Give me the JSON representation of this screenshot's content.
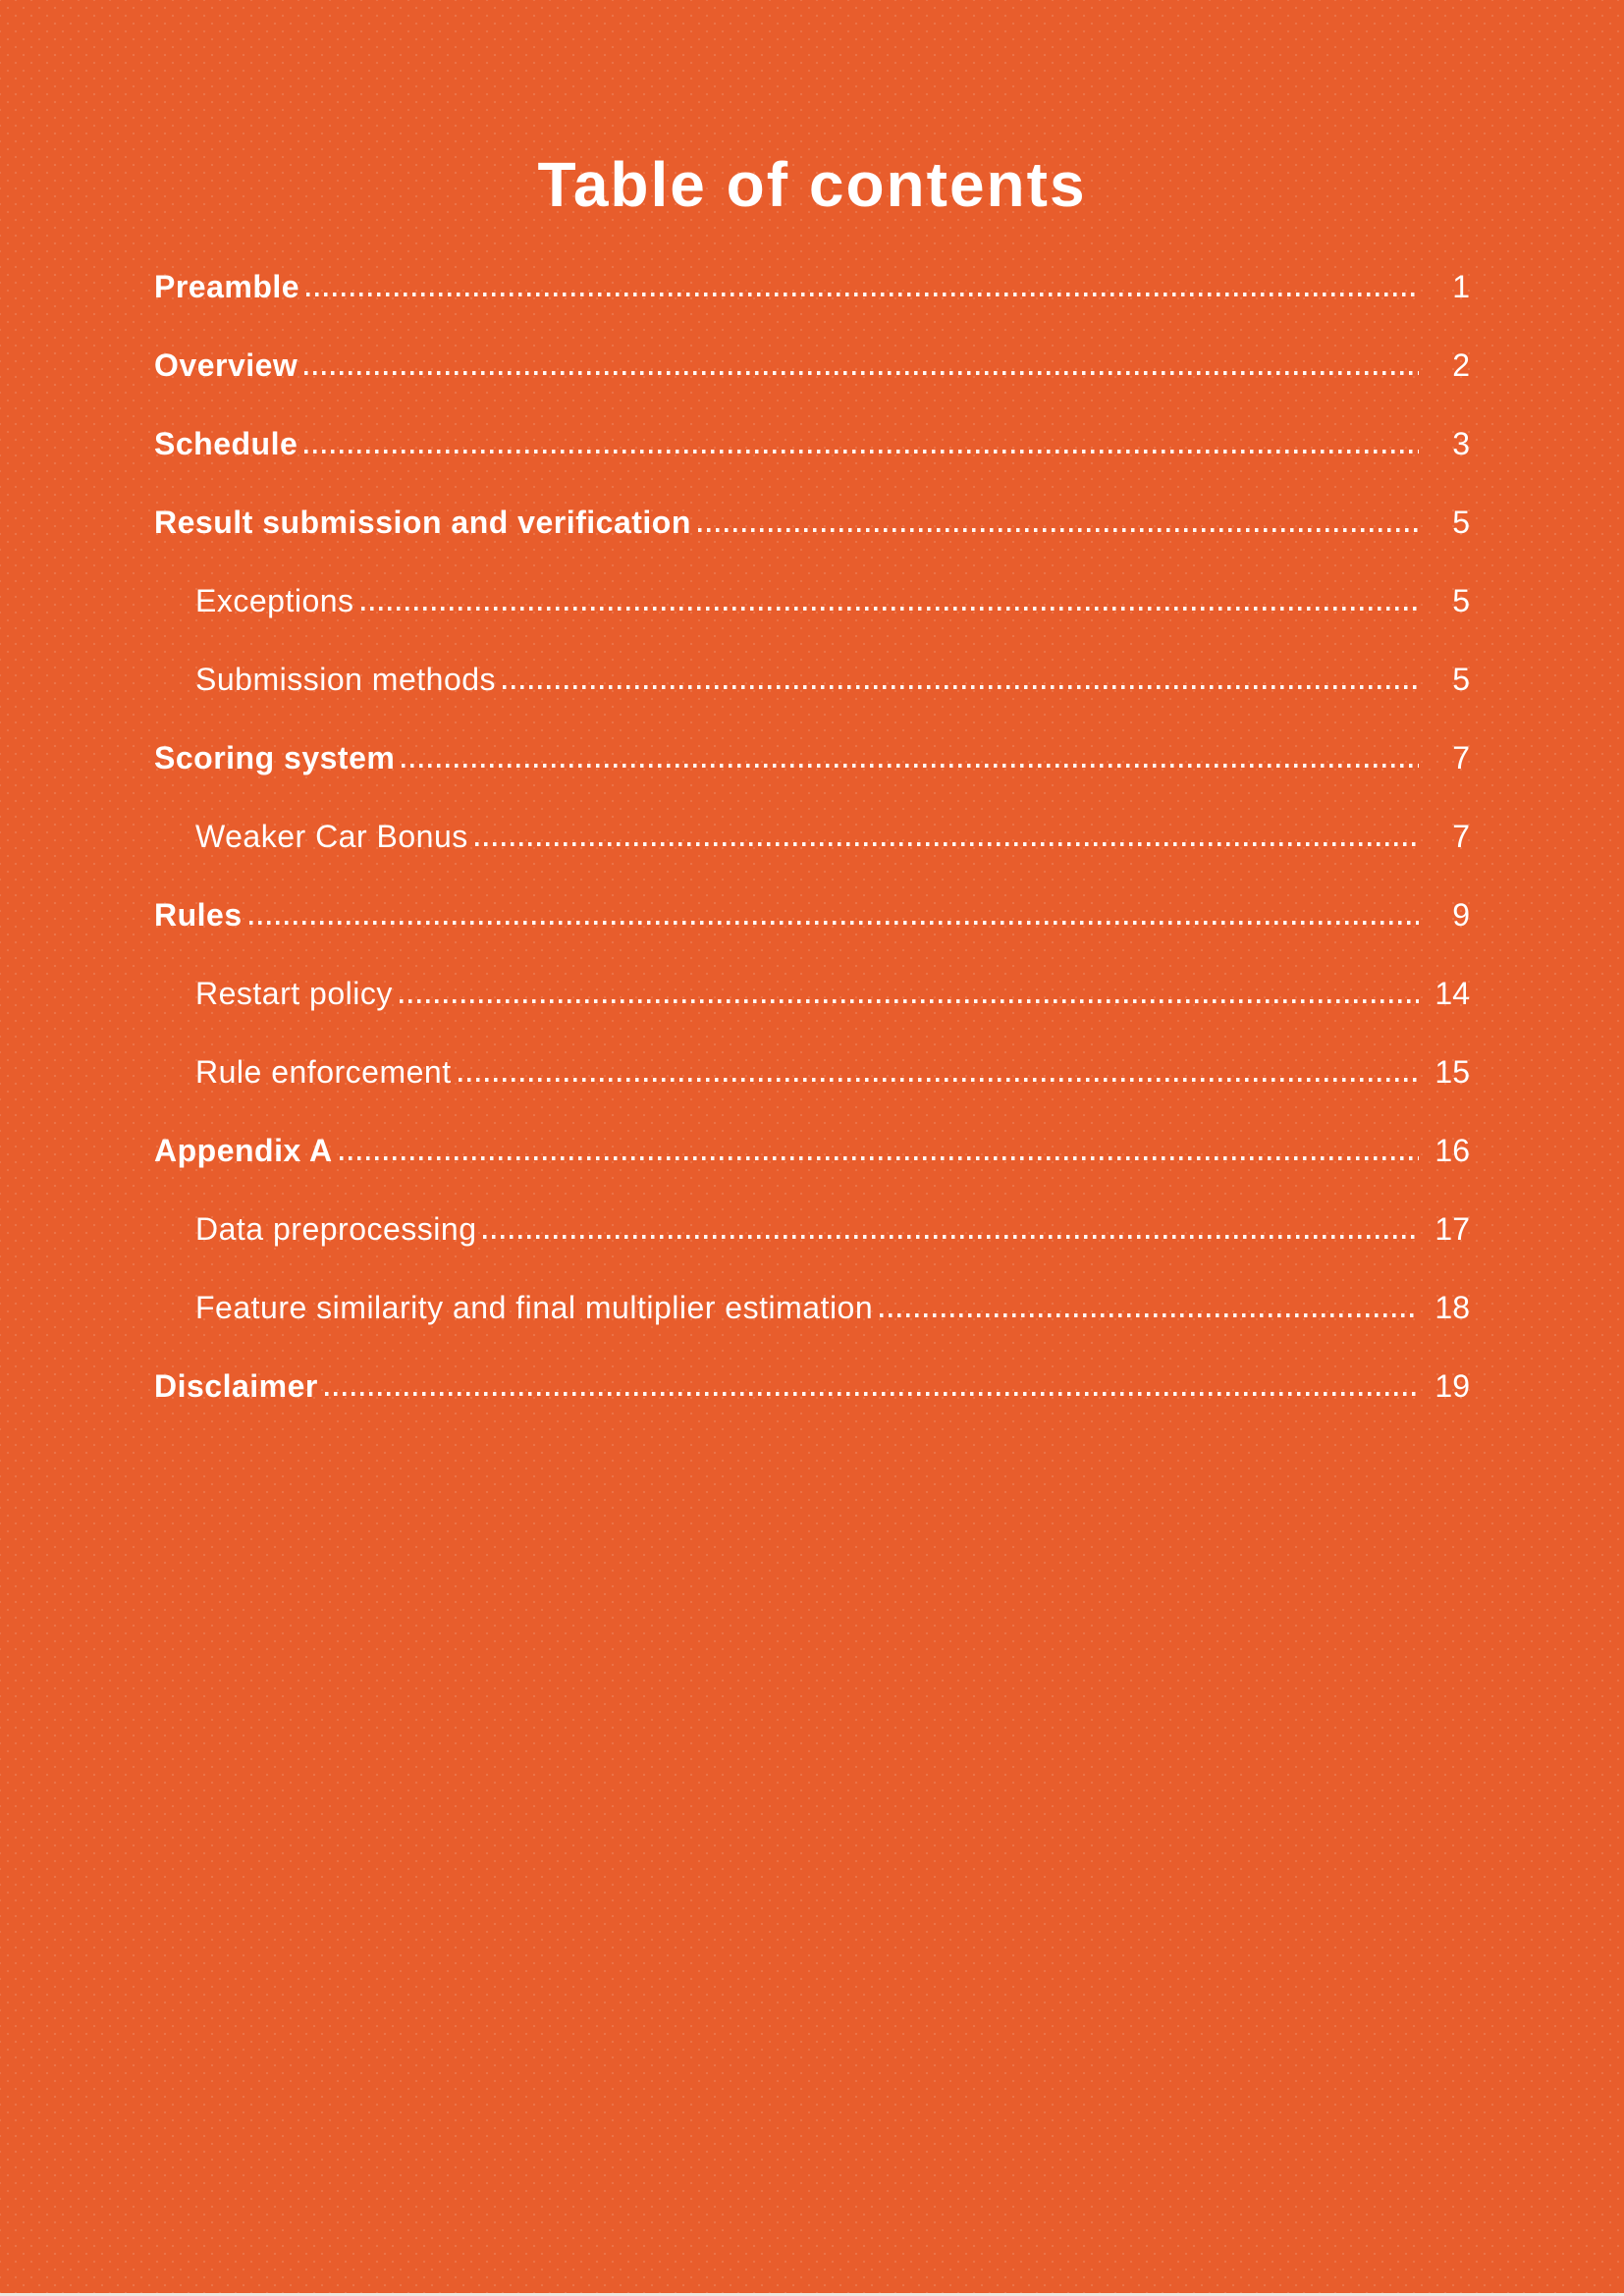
{
  "page": {
    "title": "Table of contents",
    "background_color": "#E85D2C",
    "text_color": "#FFFFFF",
    "leader_dot_color": "#FFFFFF",
    "bottom_edge_color": "#EEE8E2"
  },
  "toc": {
    "entries": [
      {
        "label": "Preamble",
        "page": "1",
        "level": 0
      },
      {
        "label": "Overview",
        "page": "2",
        "level": 0
      },
      {
        "label": "Schedule",
        "page": "3",
        "level": 0
      },
      {
        "label": "Result submission and verification",
        "page": "5",
        "level": 0
      },
      {
        "label": "Exceptions",
        "page": "5",
        "level": 1
      },
      {
        "label": "Submission methods",
        "page": "5",
        "level": 1
      },
      {
        "label": "Scoring system",
        "page": "7",
        "level": 0
      },
      {
        "label": "Weaker Car Bonus",
        "page": "7",
        "level": 1
      },
      {
        "label": "Rules",
        "page": "9",
        "level": 0
      },
      {
        "label": "Restart policy",
        "page": "14",
        "level": 1
      },
      {
        "label": "Rule enforcement",
        "page": "15",
        "level": 1
      },
      {
        "label": "Appendix A",
        "page": "16",
        "level": 0
      },
      {
        "label": "Data preprocessing",
        "page": "17",
        "level": 1
      },
      {
        "label": "Feature similarity and final multiplier estimation",
        "page": "18",
        "level": 1
      },
      {
        "label": "Disclaimer",
        "page": "19",
        "level": 0
      }
    ]
  }
}
